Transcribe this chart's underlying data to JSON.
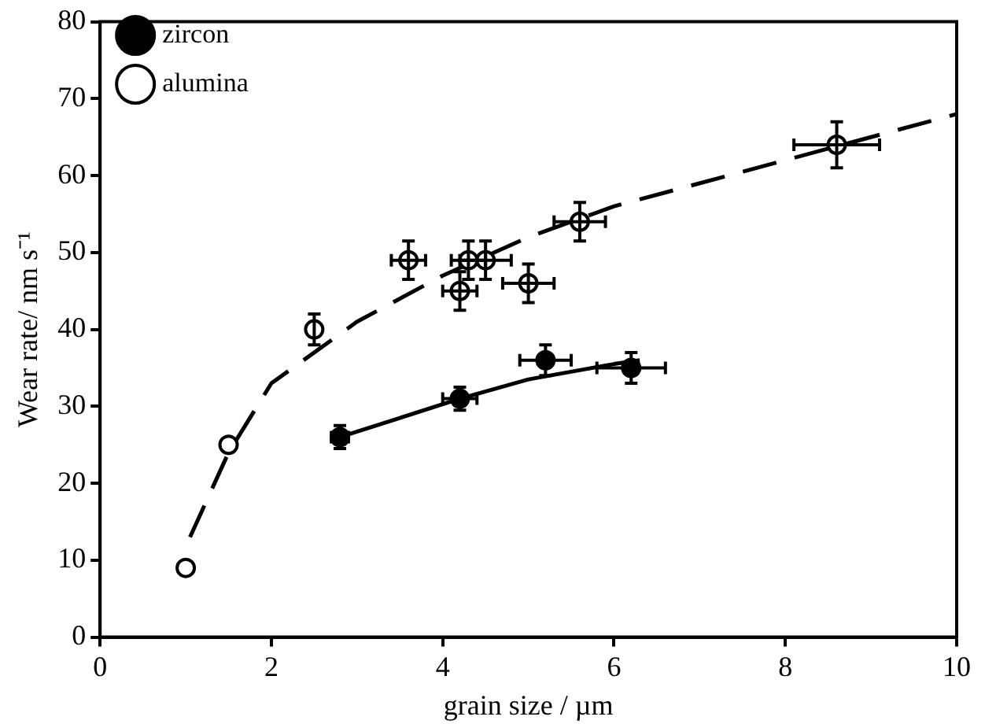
{
  "chart_data": {
    "type": "scatter",
    "xlabel": "grain size / µm",
    "ylabel": "Wear rate/ nm s⁻¹",
    "xlim": [
      0,
      10
    ],
    "xticks": [
      0,
      2,
      4,
      6,
      8,
      10
    ],
    "ylim": [
      0,
      80
    ],
    "yticks": [
      0,
      10,
      20,
      30,
      40,
      50,
      60,
      70,
      80
    ],
    "grid": false,
    "legend": "top left",
    "marker": "circle",
    "series": [
      {
        "name": "zircon",
        "color": "#000000",
        "x": [
          2.8,
          4.2,
          5.2,
          6.2
        ],
        "values": [
          26,
          31,
          36,
          35
        ],
        "errors": [
          1.5,
          1.5,
          2,
          2
        ],
        "xerrors": [
          0.1,
          0.2,
          0.3,
          0.4
        ]
      },
      {
        "name": "alumina",
        "color": "#000000",
        "x": [
          1.0,
          1.5,
          2.5,
          3.6,
          4.2,
          4.3,
          4.5,
          5.0,
          5.6,
          8.6
        ],
        "values": [
          9,
          25,
          40,
          49,
          45,
          49,
          49,
          46,
          54,
          64
        ],
        "errors": [
          null,
          null,
          2,
          2.5,
          2.5,
          2.5,
          2.5,
          2.5,
          2.5,
          3
        ],
        "xerrors": [
          null,
          null,
          null,
          0.2,
          0.2,
          0.2,
          0.3,
          0.3,
          0.3,
          0.5
        ]
      },
      {
        "type": "line",
        "line_style": "solid",
        "marker": "none",
        "color": "#000000",
        "x": [
          2.8,
          3.5,
          4.2,
          5,
          6,
          6.3
        ],
        "values": [
          26,
          28.5,
          31,
          33.5,
          35.5,
          36
        ]
      },
      {
        "type": "line",
        "line_style": "dashed",
        "marker": "none",
        "color": "#000000",
        "x": [
          1.05,
          1.5,
          2,
          3,
          4,
          5,
          6,
          8,
          10
        ],
        "values": [
          13,
          24,
          33,
          41,
          47,
          52,
          56,
          62,
          68
        ]
      }
    ]
  }
}
